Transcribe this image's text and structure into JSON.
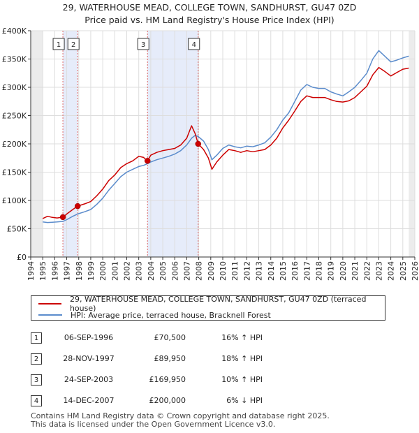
{
  "chart_data": {
    "type": "line",
    "title": "29, WATERHOUSE MEAD, COLLEGE TOWN, SANDHURST, GU47 0ZD",
    "subtitle": "Price paid vs. HM Land Registry's House Price Index (HPI)",
    "xlim": [
      1994,
      2026
    ],
    "ylim": [
      0,
      400000
    ],
    "y_ticks": [
      {
        "value": 0,
        "label": "£0"
      },
      {
        "value": 50000,
        "label": "£50K"
      },
      {
        "value": 100000,
        "label": "£100K"
      },
      {
        "value": 150000,
        "label": "£150K"
      },
      {
        "value": 200000,
        "label": "£200K"
      },
      {
        "value": 250000,
        "label": "£250K"
      },
      {
        "value": 300000,
        "label": "£300K"
      },
      {
        "value": 350000,
        "label": "£350K"
      },
      {
        "value": 400000,
        "label": "£400K"
      }
    ],
    "x_ticks": [
      "1994",
      "1995",
      "1996",
      "1997",
      "1998",
      "1999",
      "2000",
      "2001",
      "2002",
      "2003",
      "2004",
      "2005",
      "2006",
      "2007",
      "2008",
      "2009",
      "2010",
      "2011",
      "2012",
      "2013",
      "2014",
      "2015",
      "2016",
      "2017",
      "2018",
      "2019",
      "2020",
      "2021",
      "2022",
      "2023",
      "2024",
      "2025",
      "2026"
    ],
    "grid": true,
    "data_start": 1995.0,
    "data_end": 2025.5,
    "shaded_periods": [
      [
        1996.68,
        1997.91
      ],
      [
        2003.73,
        2007.95
      ]
    ],
    "series": [
      {
        "name": "29, WATERHOUSE MEAD, COLLEGE TOWN, SANDHURST, GU47 0ZD (terraced house)",
        "color": "#cc0000",
        "points": [
          [
            1995.0,
            68000
          ],
          [
            1995.4,
            72000
          ],
          [
            1995.8,
            70000
          ],
          [
            1996.2,
            69000
          ],
          [
            1996.68,
            70500
          ],
          [
            1997.0,
            76000
          ],
          [
            1997.5,
            84000
          ],
          [
            1997.91,
            89950
          ],
          [
            1998.5,
            94000
          ],
          [
            1999.0,
            98000
          ],
          [
            1999.5,
            108000
          ],
          [
            2000.0,
            120000
          ],
          [
            2000.5,
            135000
          ],
          [
            2001.0,
            145000
          ],
          [
            2001.5,
            158000
          ],
          [
            2002.0,
            165000
          ],
          [
            2002.5,
            170000
          ],
          [
            2003.0,
            178000
          ],
          [
            2003.4,
            176000
          ],
          [
            2003.73,
            169950
          ],
          [
            2004.0,
            180000
          ],
          [
            2004.5,
            185000
          ],
          [
            2005.0,
            188000
          ],
          [
            2005.5,
            190000
          ],
          [
            2006.0,
            192000
          ],
          [
            2006.5,
            198000
          ],
          [
            2007.0,
            210000
          ],
          [
            2007.4,
            232000
          ],
          [
            2007.7,
            218000
          ],
          [
            2007.95,
            200000
          ],
          [
            2008.4,
            190000
          ],
          [
            2008.8,
            175000
          ],
          [
            2009.1,
            155000
          ],
          [
            2009.5,
            168000
          ],
          [
            2010.0,
            180000
          ],
          [
            2010.5,
            190000
          ],
          [
            2011.0,
            188000
          ],
          [
            2011.5,
            185000
          ],
          [
            2012.0,
            188000
          ],
          [
            2012.5,
            186000
          ],
          [
            2013.0,
            188000
          ],
          [
            2013.5,
            190000
          ],
          [
            2014.0,
            198000
          ],
          [
            2014.5,
            210000
          ],
          [
            2015.0,
            228000
          ],
          [
            2015.5,
            242000
          ],
          [
            2016.0,
            258000
          ],
          [
            2016.5,
            275000
          ],
          [
            2017.0,
            285000
          ],
          [
            2017.5,
            282000
          ],
          [
            2018.0,
            282000
          ],
          [
            2018.5,
            282000
          ],
          [
            2019.0,
            278000
          ],
          [
            2019.5,
            275000
          ],
          [
            2020.0,
            274000
          ],
          [
            2020.5,
            276000
          ],
          [
            2021.0,
            282000
          ],
          [
            2021.5,
            292000
          ],
          [
            2022.0,
            302000
          ],
          [
            2022.5,
            322000
          ],
          [
            2023.0,
            335000
          ],
          [
            2023.5,
            328000
          ],
          [
            2024.0,
            320000
          ],
          [
            2024.5,
            326000
          ],
          [
            2025.0,
            332000
          ],
          [
            2025.5,
            334000
          ]
        ]
      },
      {
        "name": "HPI: Average price, terraced house, Bracknell Forest",
        "color": "#5b8ccc",
        "points": [
          [
            1995.0,
            62000
          ],
          [
            1995.4,
            61000
          ],
          [
            1995.8,
            61500
          ],
          [
            1996.2,
            62000
          ],
          [
            1996.68,
            63000
          ],
          [
            1997.0,
            66000
          ],
          [
            1997.5,
            72000
          ],
          [
            1997.91,
            76000
          ],
          [
            1998.5,
            80000
          ],
          [
            1999.0,
            84000
          ],
          [
            1999.5,
            93000
          ],
          [
            2000.0,
            104000
          ],
          [
            2000.5,
            118000
          ],
          [
            2001.0,
            130000
          ],
          [
            2001.5,
            142000
          ],
          [
            2002.0,
            150000
          ],
          [
            2002.5,
            155000
          ],
          [
            2003.0,
            160000
          ],
          [
            2003.4,
            162000
          ],
          [
            2003.73,
            165000
          ],
          [
            2004.0,
            168000
          ],
          [
            2004.5,
            172000
          ],
          [
            2005.0,
            175000
          ],
          [
            2005.5,
            178000
          ],
          [
            2006.0,
            182000
          ],
          [
            2006.5,
            188000
          ],
          [
            2007.0,
            198000
          ],
          [
            2007.4,
            210000
          ],
          [
            2007.7,
            215000
          ],
          [
            2007.95,
            213000
          ],
          [
            2008.4,
            205000
          ],
          [
            2008.8,
            190000
          ],
          [
            2009.1,
            172000
          ],
          [
            2009.5,
            180000
          ],
          [
            2010.0,
            192000
          ],
          [
            2010.5,
            198000
          ],
          [
            2011.0,
            195000
          ],
          [
            2011.5,
            193000
          ],
          [
            2012.0,
            196000
          ],
          [
            2012.5,
            195000
          ],
          [
            2013.0,
            198000
          ],
          [
            2013.5,
            202000
          ],
          [
            2014.0,
            212000
          ],
          [
            2014.5,
            225000
          ],
          [
            2015.0,
            242000
          ],
          [
            2015.5,
            255000
          ],
          [
            2016.0,
            275000
          ],
          [
            2016.5,
            295000
          ],
          [
            2017.0,
            305000
          ],
          [
            2017.5,
            300000
          ],
          [
            2018.0,
            298000
          ],
          [
            2018.5,
            298000
          ],
          [
            2019.0,
            292000
          ],
          [
            2019.5,
            288000
          ],
          [
            2020.0,
            285000
          ],
          [
            2020.5,
            292000
          ],
          [
            2021.0,
            300000
          ],
          [
            2021.5,
            312000
          ],
          [
            2022.0,
            325000
          ],
          [
            2022.5,
            350000
          ],
          [
            2023.0,
            365000
          ],
          [
            2023.5,
            355000
          ],
          [
            2024.0,
            345000
          ],
          [
            2024.5,
            348000
          ],
          [
            2025.0,
            352000
          ],
          [
            2025.5,
            355000
          ]
        ]
      }
    ],
    "sales": [
      {
        "label": "1",
        "x": 1996.68,
        "price": 70500
      },
      {
        "label": "2",
        "x": 1997.91,
        "price": 89950
      },
      {
        "label": "3",
        "x": 2003.73,
        "price": 169950
      },
      {
        "label": "4",
        "x": 2007.95,
        "price": 200000
      }
    ]
  },
  "legend": {
    "items": [
      {
        "label": "29, WATERHOUSE MEAD, COLLEGE TOWN, SANDHURST, GU47 0ZD (terraced house)",
        "color": "#cc0000"
      },
      {
        "label": "HPI: Average price, terraced house, Bracknell Forest",
        "color": "#5b8ccc"
      }
    ]
  },
  "transactions": [
    {
      "num": "1",
      "date": "06-SEP-1996",
      "price": "£70,500",
      "hpi": "16% ↑ HPI"
    },
    {
      "num": "2",
      "date": "28-NOV-1997",
      "price": "£89,950",
      "hpi": "18% ↑ HPI"
    },
    {
      "num": "3",
      "date": "24-SEP-2003",
      "price": "£169,950",
      "hpi": "10% ↑ HPI"
    },
    {
      "num": "4",
      "date": "14-DEC-2007",
      "price": "£200,000",
      "hpi": "6% ↓ HPI"
    }
  ],
  "footer": {
    "line1": "Contains HM Land Registry data © Crown copyright and database right 2025.",
    "line2": "This data is licensed under the Open Government Licence v3.0."
  }
}
